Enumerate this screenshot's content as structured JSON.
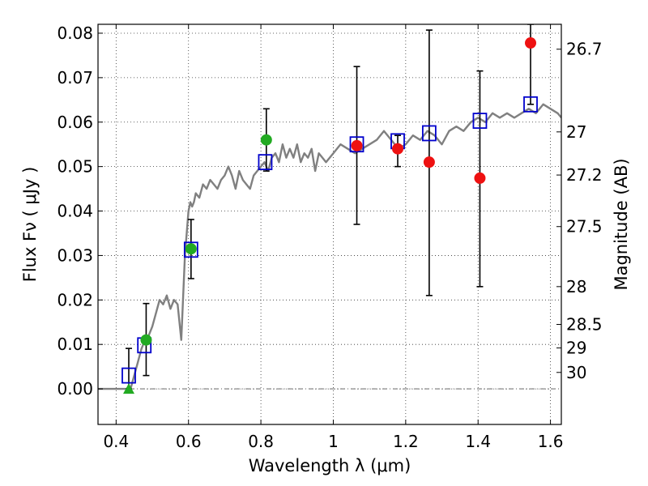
{
  "chart_data": {
    "type": "scatter",
    "xlabel": "Wavelength  λ (μm)",
    "ylabel": "Flux  Fν  ( μJy )",
    "ylabel_right": "Magnitude (AB)",
    "xlim": [
      0.35,
      1.63
    ],
    "ylim": [
      -0.008,
      0.082
    ],
    "x_ticks": [
      {
        "value": 0.4,
        "label": "0.4"
      },
      {
        "value": 0.6,
        "label": "0.6"
      },
      {
        "value": 0.8,
        "label": "0.8"
      },
      {
        "value": 1.0,
        "label": "1"
      },
      {
        "value": 1.2,
        "label": "1.2"
      },
      {
        "value": 1.4,
        "label": "1.4"
      },
      {
        "value": 1.6,
        "label": "1.6"
      }
    ],
    "y_ticks": [
      {
        "value": 0.0,
        "label": "0.00"
      },
      {
        "value": 0.01,
        "label": "0.01"
      },
      {
        "value": 0.02,
        "label": "0.02"
      },
      {
        "value": 0.03,
        "label": "0.03"
      },
      {
        "value": 0.04,
        "label": "0.04"
      },
      {
        "value": 0.05,
        "label": "0.05"
      },
      {
        "value": 0.06,
        "label": "0.06"
      },
      {
        "value": 0.07,
        "label": "0.07"
      },
      {
        "value": 0.08,
        "label": "0.08"
      }
    ],
    "right_ticks": [
      {
        "label": "26.7",
        "flux": 0.0764
      },
      {
        "label": "27",
        "flux": 0.0578
      },
      {
        "label": "27.2",
        "flux": 0.0481
      },
      {
        "label": "27.5",
        "flux": 0.0365
      },
      {
        "label": "28",
        "flux": 0.023
      },
      {
        "label": "28.5",
        "flux": 0.0145
      },
      {
        "label": "29",
        "flux": 0.0092
      },
      {
        "label": "30",
        "flux": 0.0037
      }
    ],
    "grid": true,
    "colors": {
      "sed": "#808080",
      "model_boxes": "#0000cc",
      "green_points": "#22aa22",
      "red_points": "#ee1111",
      "error_bars": "#000000",
      "zero_line": "#555555"
    },
    "series": [
      {
        "kind": "line",
        "x": [
          0.35,
          0.4,
          0.44,
          0.45,
          0.46,
          0.47,
          0.48,
          0.49,
          0.5,
          0.51,
          0.52,
          0.53,
          0.535,
          0.54,
          0.55,
          0.56,
          0.57,
          0.58,
          0.59,
          0.6,
          0.605,
          0.61,
          0.615,
          0.62,
          0.63,
          0.64,
          0.65,
          0.66,
          0.67,
          0.68,
          0.69,
          0.7,
          0.71,
          0.72,
          0.73,
          0.74,
          0.75,
          0.76,
          0.77,
          0.78,
          0.79,
          0.8,
          0.81,
          0.82,
          0.83,
          0.84,
          0.85,
          0.86,
          0.87,
          0.88,
          0.89,
          0.9,
          0.91,
          0.92,
          0.93,
          0.94,
          0.95,
          0.96,
          0.97,
          0.98,
          0.99,
          1.0,
          1.02,
          1.04,
          1.06,
          1.08,
          1.1,
          1.12,
          1.14,
          1.16,
          1.18,
          1.2,
          1.22,
          1.24,
          1.26,
          1.28,
          1.3,
          1.32,
          1.34,
          1.36,
          1.38,
          1.4,
          1.42,
          1.44,
          1.46,
          1.48,
          1.5,
          1.52,
          1.54,
          1.56,
          1.58,
          1.6,
          1.62,
          1.63
        ],
        "y": [
          0.0,
          0.0,
          0.0,
          0.003,
          0.006,
          0.009,
          0.011,
          0.012,
          0.014,
          0.017,
          0.02,
          0.019,
          0.02,
          0.021,
          0.018,
          0.02,
          0.019,
          0.011,
          0.03,
          0.04,
          0.042,
          0.041,
          0.042,
          0.044,
          0.043,
          0.046,
          0.045,
          0.047,
          0.046,
          0.045,
          0.047,
          0.048,
          0.05,
          0.048,
          0.045,
          0.049,
          0.047,
          0.046,
          0.045,
          0.048,
          0.049,
          0.05,
          0.051,
          0.049,
          0.052,
          0.053,
          0.051,
          0.055,
          0.052,
          0.054,
          0.052,
          0.055,
          0.051,
          0.053,
          0.052,
          0.054,
          0.049,
          0.053,
          0.052,
          0.051,
          0.052,
          0.053,
          0.055,
          0.054,
          0.053,
          0.054,
          0.055,
          0.056,
          0.058,
          0.056,
          0.054,
          0.055,
          0.057,
          0.056,
          0.058,
          0.057,
          0.055,
          0.058,
          0.059,
          0.058,
          0.06,
          0.061,
          0.06,
          0.062,
          0.061,
          0.062,
          0.061,
          0.062,
          0.063,
          0.062,
          0.064,
          0.063,
          0.062,
          0.061
        ]
      },
      {
        "kind": "open-square",
        "x": [
          0.435,
          0.478,
          0.607,
          0.812,
          1.065,
          1.178,
          1.265,
          1.405,
          1.545
        ],
        "y": [
          0.003,
          0.0098,
          0.0313,
          0.051,
          0.055,
          0.0557,
          0.0575,
          0.0603,
          0.064
        ]
      },
      {
        "kind": "filled-triangle",
        "x": [
          0.435
        ],
        "y": [
          0.0
        ]
      },
      {
        "kind": "filled-circle",
        "color_key": "green_points",
        "x": [
          0.483,
          0.607,
          0.815
        ],
        "y": [
          0.011,
          0.0315,
          0.056
        ]
      },
      {
        "kind": "filled-circle",
        "color_key": "red_points",
        "x": [
          1.065,
          1.178,
          1.265,
          1.405,
          1.545
        ],
        "y": [
          0.0547,
          0.054,
          0.051,
          0.0474,
          0.0778
        ]
      },
      {
        "kind": "errorbar",
        "x": [
          0.435,
          0.483,
          0.607,
          0.815,
          1.065,
          1.178,
          1.265,
          1.405,
          1.545
        ],
        "low": [
          0.0,
          0.003,
          0.0248,
          0.049,
          0.037,
          0.05,
          0.021,
          0.023,
          0.064
        ],
        "high": [
          0.0091,
          0.0192,
          0.0381,
          0.063,
          0.0725,
          0.057,
          0.0807,
          0.0715,
          0.082
        ]
      }
    ]
  }
}
